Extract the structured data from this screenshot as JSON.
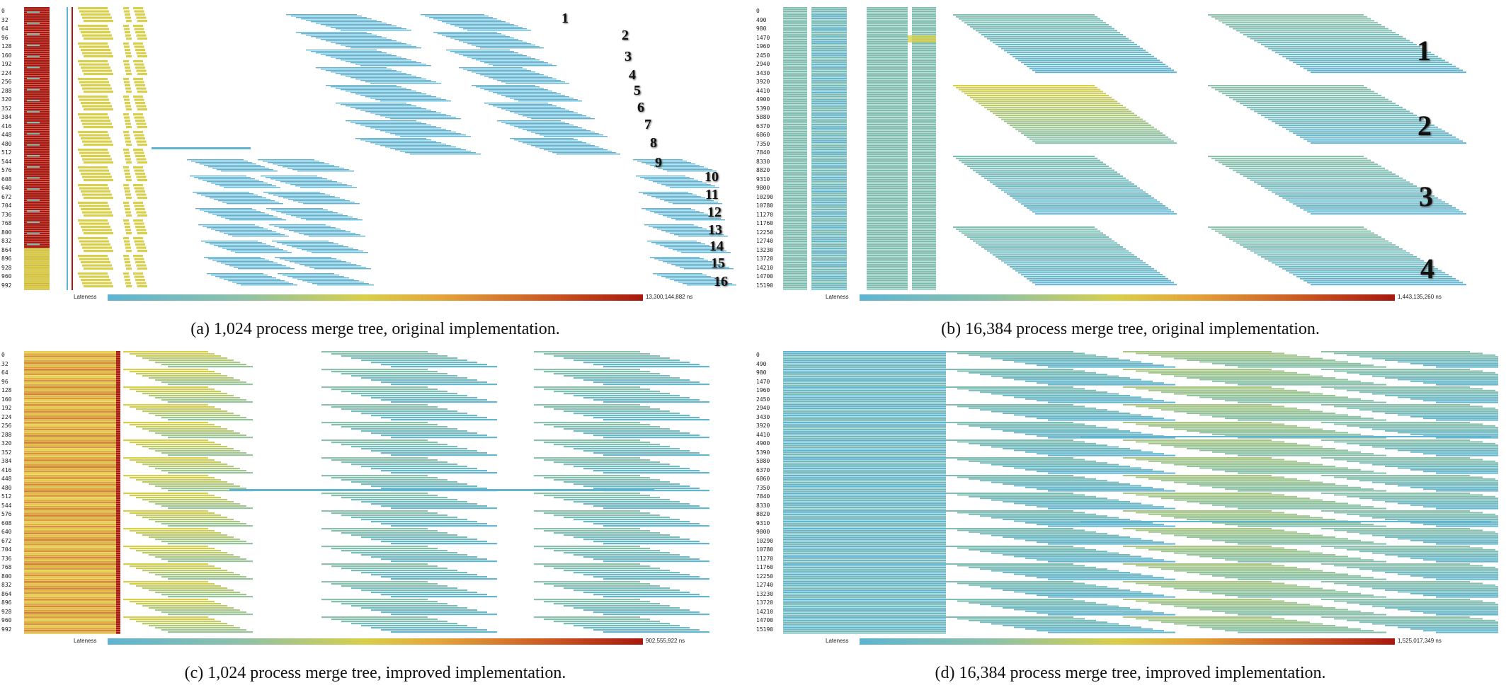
{
  "colors": {
    "blue": "#5fb4d2",
    "teal": "#7fbdb0",
    "yellow": "#d8cf4a",
    "orange": "#e4a53a",
    "red": "#a8180e"
  },
  "panels": [
    {
      "id": "a",
      "caption": "(a) 1,024 process merge tree, original implementation.",
      "legend_label": "Lateness",
      "legend_max": "13,300,144,882 ns",
      "ticks": [
        "0",
        "32",
        "64",
        "96",
        "128",
        "160",
        "192",
        "224",
        "256",
        "288",
        "320",
        "352",
        "384",
        "416",
        "448",
        "480",
        "512",
        "544",
        "576",
        "608",
        "640",
        "672",
        "704",
        "736",
        "768",
        "800",
        "832",
        "864",
        "896",
        "928",
        "960",
        "992"
      ],
      "numbers": [
        "1",
        "2",
        "3",
        "4",
        "5",
        "6",
        "7",
        "8",
        "9",
        "10",
        "11",
        "12",
        "13",
        "14",
        "15",
        "16"
      ]
    },
    {
      "id": "b",
      "caption": "(b) 16,384 process merge tree, original implementation.",
      "legend_label": "Lateness",
      "legend_max": "1,443,135,260 ns",
      "ticks": [
        "0",
        "490",
        "980",
        "1470",
        "1960",
        "2450",
        "2940",
        "3430",
        "3920",
        "4410",
        "4900",
        "5390",
        "5880",
        "6370",
        "6860",
        "7350",
        "7840",
        "8330",
        "8820",
        "9310",
        "9800",
        "10290",
        "10780",
        "11270",
        "11760",
        "12250",
        "12740",
        "13230",
        "13720",
        "14210",
        "14700",
        "15190"
      ],
      "numbers": [
        "1",
        "2",
        "3",
        "4"
      ]
    },
    {
      "id": "c",
      "caption": "(c) 1,024 process merge tree, improved implementation.",
      "legend_label": "Lateness",
      "legend_max": "902,555,922 ns",
      "ticks": [
        "0",
        "32",
        "64",
        "96",
        "128",
        "160",
        "192",
        "224",
        "256",
        "288",
        "320",
        "352",
        "384",
        "416",
        "448",
        "480",
        "512",
        "544",
        "576",
        "608",
        "640",
        "672",
        "704",
        "736",
        "768",
        "800",
        "832",
        "864",
        "896",
        "928",
        "960",
        "992"
      ],
      "numbers": []
    },
    {
      "id": "d",
      "caption": "(d) 16,384 process merge tree, improved implementation.",
      "legend_label": "Lateness",
      "legend_max": "1,525,017,349 ns",
      "ticks": [
        "0",
        "490",
        "980",
        "1470",
        "1960",
        "2450",
        "2940",
        "3430",
        "3920",
        "4410",
        "4900",
        "5390",
        "5880",
        "6370",
        "6860",
        "7350",
        "7840",
        "8330",
        "8820",
        "9310",
        "9800",
        "10290",
        "10780",
        "11270",
        "11760",
        "12250",
        "12740",
        "13230",
        "13720",
        "14210",
        "14700",
        "15190"
      ],
      "numbers": []
    }
  ]
}
